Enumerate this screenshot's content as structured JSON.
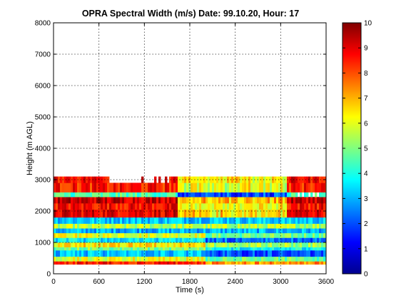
{
  "chart_data": {
    "type": "heatmap",
    "title": "OPRA Spectral Width (m/s)  Date: 99.10.20, Hour: 17",
    "xlabel": "Time (s)",
    "ylabel": "Height (m AGL)",
    "xlim": [
      0,
      3600
    ],
    "ylim": [
      0,
      8000
    ],
    "xticks": [
      "0",
      "600",
      "1200",
      "1800",
      "2400",
      "3000",
      "3600"
    ],
    "yticks": [
      "0",
      "1000",
      "2000",
      "3000",
      "4000",
      "5000",
      "6000",
      "7000",
      "8000"
    ],
    "grid": true,
    "colormap": "jet",
    "colorbar": {
      "range": [
        0,
        10
      ],
      "ticks": [
        "0",
        "1",
        "2",
        "3",
        "4",
        "5",
        "6",
        "7",
        "8",
        "9",
        "10"
      ]
    },
    "data_height_range_m": [
      300,
      3100
    ],
    "layers": [
      {
        "height_m": [
          300,
          400
        ],
        "value": 8.5
      },
      {
        "height_m": [
          400,
          550
        ],
        "value": 6.0
      },
      {
        "height_m": [
          550,
          750
        ],
        "value": 3.2
      },
      {
        "height_m": [
          750,
          850
        ],
        "value": 5.0
      },
      {
        "height_m": [
          850,
          1000
        ],
        "value": 6.5
      },
      {
        "height_m": [
          1000,
          1150
        ],
        "value": 3.5
      },
      {
        "height_m": [
          1150,
          1300
        ],
        "value": 6.0
      },
      {
        "height_m": [
          1300,
          1450
        ],
        "value": 3.0
      },
      {
        "height_m": [
          1450,
          1600
        ],
        "value": 5.5
      },
      {
        "height_m": [
          1600,
          1800
        ],
        "value": 3.3
      },
      {
        "height_m": [
          1800,
          2050
        ],
        "value": 9.0
      },
      {
        "height_m": [
          2050,
          2250
        ],
        "value": 8.7
      },
      {
        "height_m": [
          2250,
          2450
        ],
        "value": 9.3
      },
      {
        "height_m": [
          2450,
          2600
        ],
        "value": 4.5
      },
      {
        "height_m": [
          2600,
          2900
        ],
        "value": 8.5
      },
      {
        "height_m": [
          2900,
          3100
        ],
        "value": 8.8
      }
    ]
  },
  "colors": {
    "axes": "#000000",
    "grid": "#000000",
    "background": "#ffffff"
  }
}
